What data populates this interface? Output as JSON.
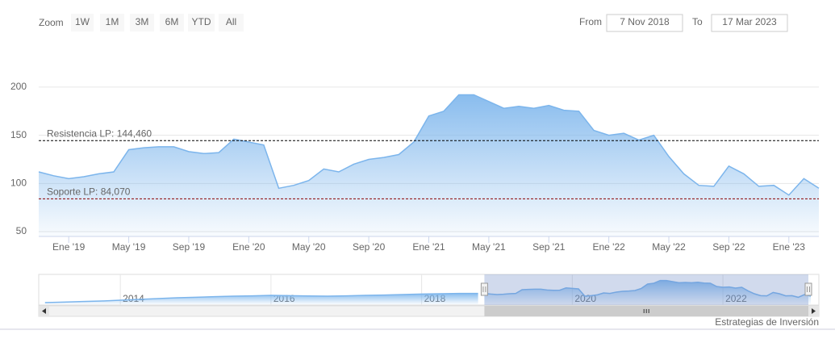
{
  "chart_data": {
    "type": "area",
    "range_selector": {
      "label": "Zoom",
      "buttons": [
        "1W",
        "1M",
        "3M",
        "6M",
        "YTD",
        "All"
      ],
      "from_label": "From",
      "from": "7 Nov 2018",
      "to_label": "To",
      "to": "17 Mar 2023"
    },
    "x": [
      "2018-11",
      "2018-12",
      "2019-01",
      "2019-02",
      "2019-03",
      "2019-04",
      "2019-05",
      "2019-06",
      "2019-07",
      "2019-08",
      "2019-09",
      "2019-10",
      "2019-11",
      "2019-12",
      "2020-01",
      "2020-02",
      "2020-03",
      "2020-04",
      "2020-05",
      "2020-06",
      "2020-07",
      "2020-08",
      "2020-09",
      "2020-10",
      "2020-11",
      "2020-12",
      "2021-01",
      "2021-02",
      "2021-03",
      "2021-04",
      "2021-05",
      "2021-06",
      "2021-07",
      "2021-08",
      "2021-09",
      "2021-10",
      "2021-11",
      "2021-12",
      "2022-01",
      "2022-02",
      "2022-03",
      "2022-04",
      "2022-05",
      "2022-06",
      "2022-07",
      "2022-08",
      "2022-09",
      "2022-10",
      "2022-11",
      "2022-12",
      "2023-01",
      "2023-02",
      "2023-03"
    ],
    "series": [
      {
        "color": "#7cb5ec",
        "values": [
          112,
          108,
          105,
          107,
          110,
          112,
          135,
          137,
          138,
          138,
          133,
          131,
          132,
          146,
          143,
          140,
          95,
          98,
          103,
          115,
          112,
          120,
          125,
          127,
          130,
          143,
          170,
          175,
          192,
          192,
          185,
          178,
          180,
          178,
          181,
          176,
          175,
          155,
          150,
          152,
          145,
          150,
          128,
          110,
          98,
          97,
          118,
          110,
          97,
          98,
          88,
          105,
          95
        ]
      }
    ],
    "xlim": [
      "2018-11",
      "2023-03"
    ],
    "xticks": [
      {
        "value": "2019-01",
        "label": "Ene '19"
      },
      {
        "value": "2019-05",
        "label": "May '19"
      },
      {
        "value": "2019-09",
        "label": "Sep '19"
      },
      {
        "value": "2020-01",
        "label": "Ene '20"
      },
      {
        "value": "2020-05",
        "label": "May '20"
      },
      {
        "value": "2020-09",
        "label": "Sep '20"
      },
      {
        "value": "2021-01",
        "label": "Ene '21"
      },
      {
        "value": "2021-05",
        "label": "May '21"
      },
      {
        "value": "2021-09",
        "label": "Sep '21"
      },
      {
        "value": "2022-01",
        "label": "Ene '22"
      },
      {
        "value": "2022-05",
        "label": "May '22"
      },
      {
        "value": "2022-09",
        "label": "Sep '22"
      },
      {
        "value": "2023-01",
        "label": "Ene '23"
      }
    ],
    "ylim": [
      45,
      215
    ],
    "yticks": [
      50,
      100,
      150,
      200
    ],
    "grid": true,
    "plot_lines": [
      {
        "label": "Resistencia LP: 144,460",
        "value": 144.46,
        "color": "#000000"
      },
      {
        "label": "Soporte LP: 84,070",
        "value": 84.07,
        "color": "#8b0000"
      }
    ],
    "navigator": {
      "xlim": [
        "2012-12",
        "2023-03"
      ],
      "labels": [
        "2014",
        "2016",
        "2018",
        "2020",
        "2022"
      ],
      "x": [
        "2013-01",
        "2013-04",
        "2013-07",
        "2013-10",
        "2014-01",
        "2014-04",
        "2014-07",
        "2014-10",
        "2015-01",
        "2015-04",
        "2015-07",
        "2015-10",
        "2016-01",
        "2016-04",
        "2016-07",
        "2016-10",
        "2017-01",
        "2017-04",
        "2017-07",
        "2017-10",
        "2018-01",
        "2018-04",
        "2018-07",
        "2018-10"
      ],
      "values": [
        55,
        58,
        62,
        65,
        70,
        75,
        80,
        85,
        88,
        92,
        95,
        97,
        100,
        98,
        96,
        95,
        97,
        100,
        102,
        105,
        108,
        110,
        112,
        112
      ]
    },
    "credits": "Estrategias de Inversión"
  }
}
